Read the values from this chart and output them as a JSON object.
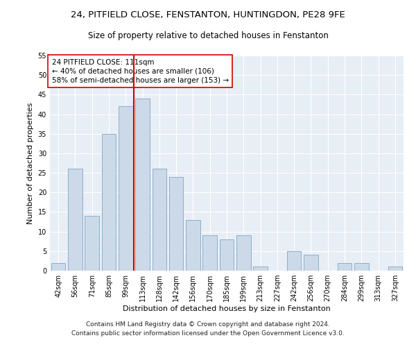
{
  "title1": "24, PITFIELD CLOSE, FENSTANTON, HUNTINGDON, PE28 9FE",
  "title2": "Size of property relative to detached houses in Fenstanton",
  "xlabel": "Distribution of detached houses by size in Fenstanton",
  "ylabel": "Number of detached properties",
  "footer1": "Contains HM Land Registry data © Crown copyright and database right 2024.",
  "footer2": "Contains public sector information licensed under the Open Government Licence v3.0.",
  "annotation_line1": "24 PITFIELD CLOSE: 111sqm",
  "annotation_line2": "← 40% of detached houses are smaller (106)",
  "annotation_line3": "58% of semi-detached houses are larger (153) →",
  "bar_labels": [
    "42sqm",
    "56sqm",
    "71sqm",
    "85sqm",
    "99sqm",
    "113sqm",
    "128sqm",
    "142sqm",
    "156sqm",
    "170sqm",
    "185sqm",
    "199sqm",
    "213sqm",
    "227sqm",
    "242sqm",
    "256sqm",
    "270sqm",
    "284sqm",
    "299sqm",
    "313sqm",
    "327sqm"
  ],
  "bar_values": [
    2,
    26,
    14,
    35,
    42,
    44,
    26,
    24,
    13,
    9,
    8,
    9,
    1,
    0,
    5,
    4,
    0,
    2,
    2,
    0,
    1
  ],
  "bar_color": "#ccd9e8",
  "bar_edge_color": "#8bafc8",
  "vline_index": 5,
  "vline_color": "#cc0000",
  "box_edge_color": "#cc0000",
  "plot_bg": "#e8eef6",
  "grid_color": "#ffffff",
  "ylim": [
    0,
    55
  ],
  "yticks": [
    0,
    5,
    10,
    15,
    20,
    25,
    30,
    35,
    40,
    45,
    50,
    55
  ],
  "title1_fontsize": 9.5,
  "title2_fontsize": 8.5,
  "xlabel_fontsize": 8,
  "ylabel_fontsize": 8,
  "tick_fontsize": 7,
  "annotation_fontsize": 7.5,
  "footer_fontsize": 6.5
}
